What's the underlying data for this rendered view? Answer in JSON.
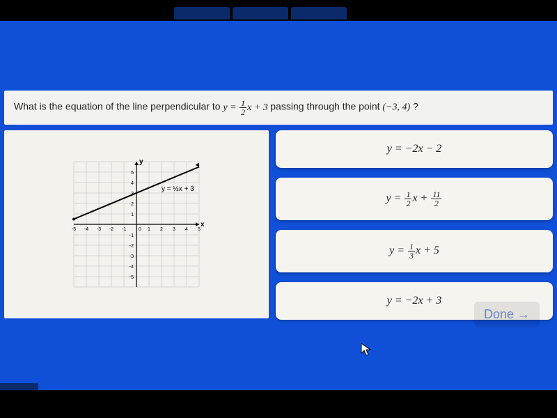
{
  "question": {
    "prefix": "What is the equation of the line perpendicular to ",
    "equation_y": "y",
    "equation_eq": " = ",
    "equation_frac_num": "1",
    "equation_frac_den": "2",
    "equation_x": "x",
    "equation_plus": " + 3",
    "mid": " passing through the point ",
    "point": "(−3, 4)",
    "suffix": "?"
  },
  "graph": {
    "type": "line",
    "xlim": [
      -5,
      5
    ],
    "ylim": [
      -6,
      6
    ],
    "xtick_step": 1,
    "ytick_step": 1,
    "xticks": [
      "-5",
      "-4",
      "-3",
      "-2",
      "-1",
      "0",
      "1",
      "2",
      "3",
      "4",
      "5"
    ],
    "grid_color": "#bcbcbc",
    "axis_color": "#000000",
    "background_color": "#f4f2ed",
    "line_label": "y = ½x + 3",
    "line_color": "#000000",
    "line_width": 2,
    "label_fontsize": 10,
    "tick_fontsize": 7,
    "y_label": "y",
    "x_label": "x",
    "line_points": [
      [
        -5,
        0.5
      ],
      [
        5,
        5.5
      ]
    ]
  },
  "answers": [
    {
      "display": "y = −2x − 2"
    },
    {
      "display_html": "y = ½x + 11/2",
      "num1": "1",
      "den1": "2",
      "num2": "11",
      "den2": "2"
    },
    {
      "display_html": "y = ⅓x + 5",
      "num1": "1",
      "den1": "3",
      "plus": "5"
    },
    {
      "display": "y = −2x + 3"
    }
  ],
  "done_label": "Done →",
  "colors": {
    "page_bg": "#1050d8",
    "panel_bg": "#f4f2ed",
    "answer_bg": "#f6f4ef",
    "text": "#222222"
  }
}
